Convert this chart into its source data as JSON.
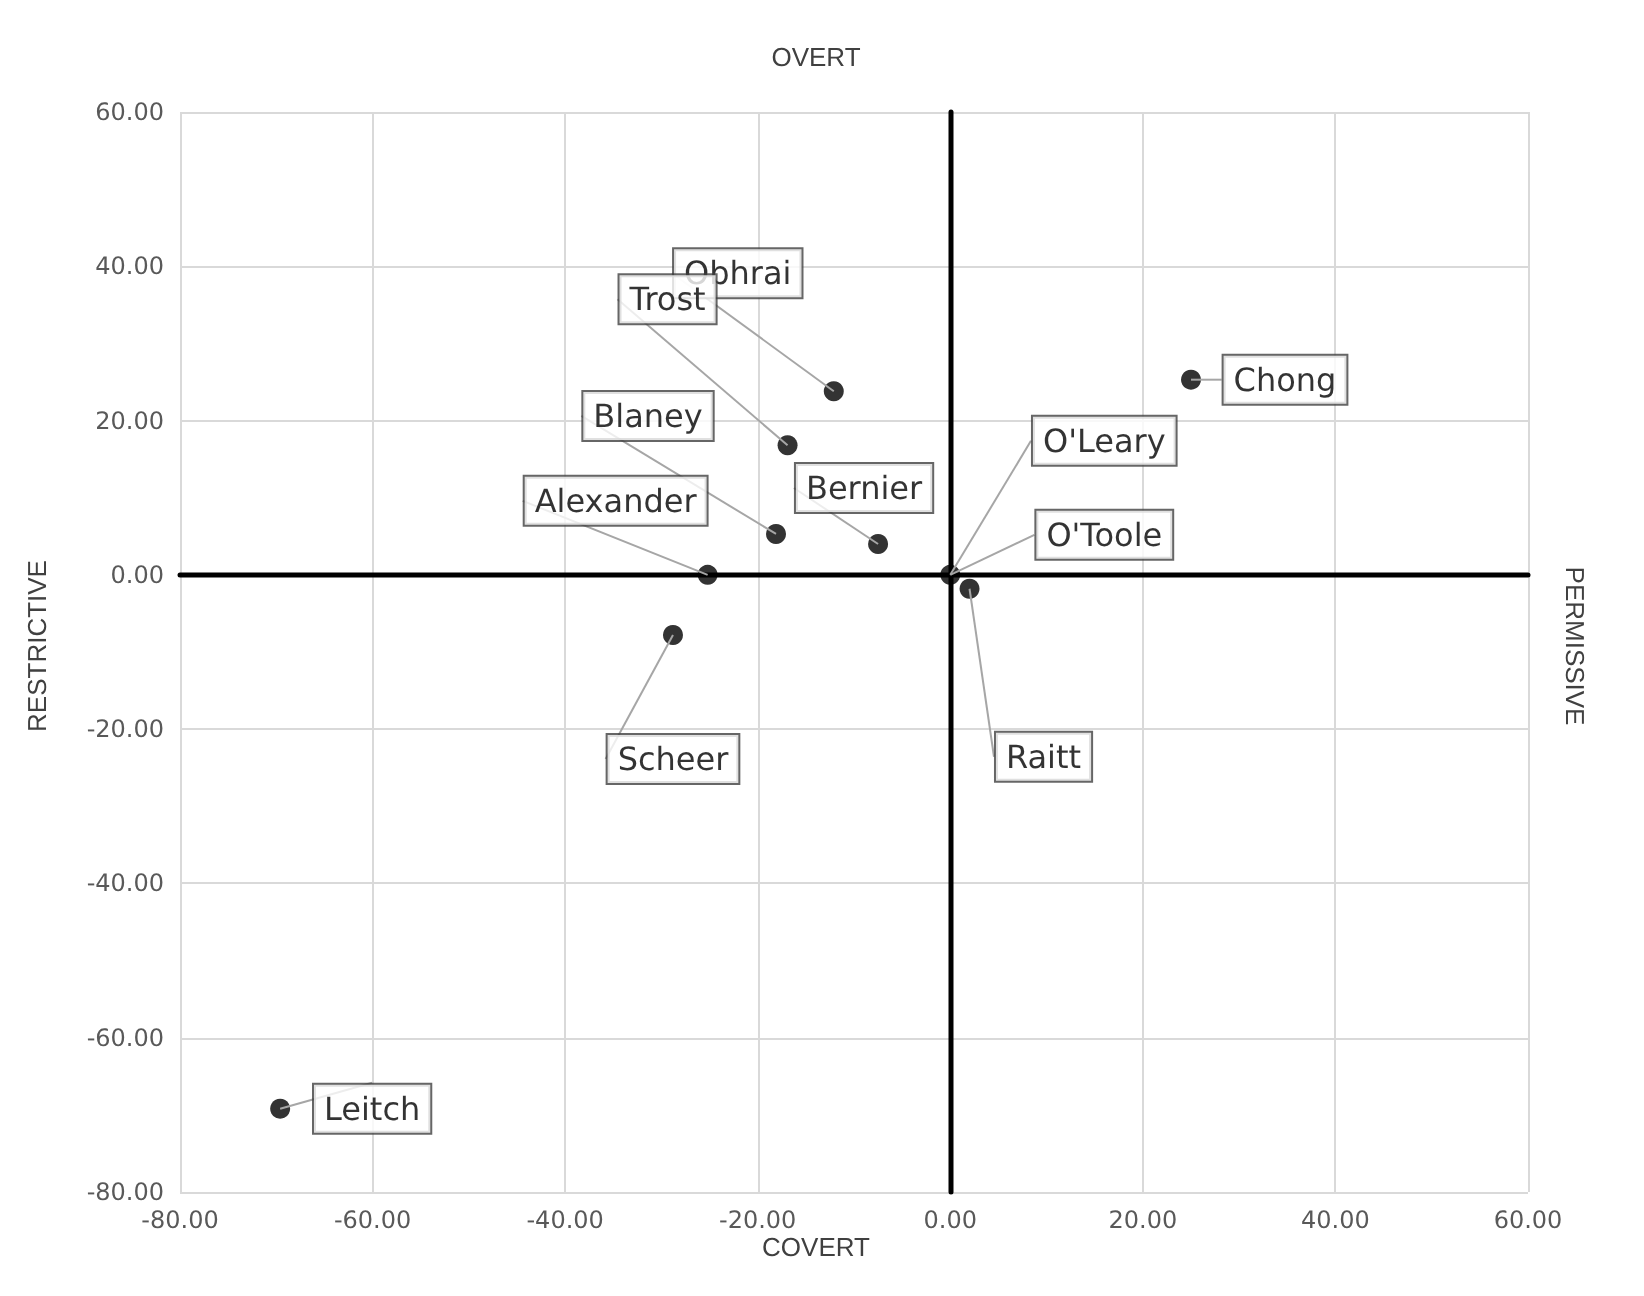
{
  "chart_data": {
    "type": "scatter",
    "x": [
      -12.1,
      -16.9,
      25,
      -18.1,
      -7.5,
      -25.2,
      0,
      2,
      -28.8,
      -69.6
    ],
    "values": [
      23.8,
      16.8,
      25.3,
      5.3,
      4,
      0,
      0,
      -1.8,
      -7.8,
      -69.2
    ],
    "color": "#000000",
    "marker": "circle",
    "grid": true,
    "xlim": [
      -80,
      60
    ],
    "xticks": [
      {
        "value": -80,
        "label": "-80.00"
      },
      {
        "value": -60,
        "label": "-60.00"
      },
      {
        "value": -40,
        "label": "-40.00"
      },
      {
        "value": -20,
        "label": "-20.00"
      },
      {
        "value": 0,
        "label": "0.00"
      },
      {
        "value": 20,
        "label": "20.00"
      },
      {
        "value": 40,
        "label": "40.00"
      },
      {
        "value": 60,
        "label": "60.00"
      }
    ],
    "ylim": [
      -80,
      60
    ],
    "yticks": [
      {
        "value": -80,
        "label": "-80.00"
      },
      {
        "value": -60,
        "label": "-60.00"
      },
      {
        "value": -40,
        "label": "-40.00"
      },
      {
        "value": -20,
        "label": "-20.00"
      },
      {
        "value": 0,
        "label": "0.00"
      },
      {
        "value": 20,
        "label": "20.00"
      },
      {
        "value": 40,
        "label": "40.00"
      },
      {
        "value": 60,
        "label": "60.00"
      }
    ],
    "annotations": [
      "OVERT",
      "COVERT",
      "RESTRICTIVE",
      "PERMISSIVE",
      {
        "text": "Obhrai",
        "x": -12.1,
        "y": 23.8
      },
      {
        "text": "Trost",
        "x": -16.9,
        "y": 16.8
      },
      {
        "text": "Chong",
        "x": 25,
        "y": 25.3
      },
      {
        "text": "Blaney",
        "x": -18.1,
        "y": 5.3
      },
      {
        "text": "Bernier",
        "x": -7.5,
        "y": 4
      },
      {
        "text": "Alexander",
        "x": -25.2,
        "y": 0
      },
      {
        "text": "O'Leary",
        "x": 0,
        "y": 0
      },
      {
        "text": "O'Toole",
        "x": 0,
        "y": 0
      },
      {
        "text": "Raitt",
        "x": 2,
        "y": -1.8
      },
      {
        "text": "Scheer",
        "x": -28.8,
        "y": -7.8
      },
      {
        "text": "Leitch",
        "x": -69.6,
        "y": -69.2
      }
    ]
  }
}
